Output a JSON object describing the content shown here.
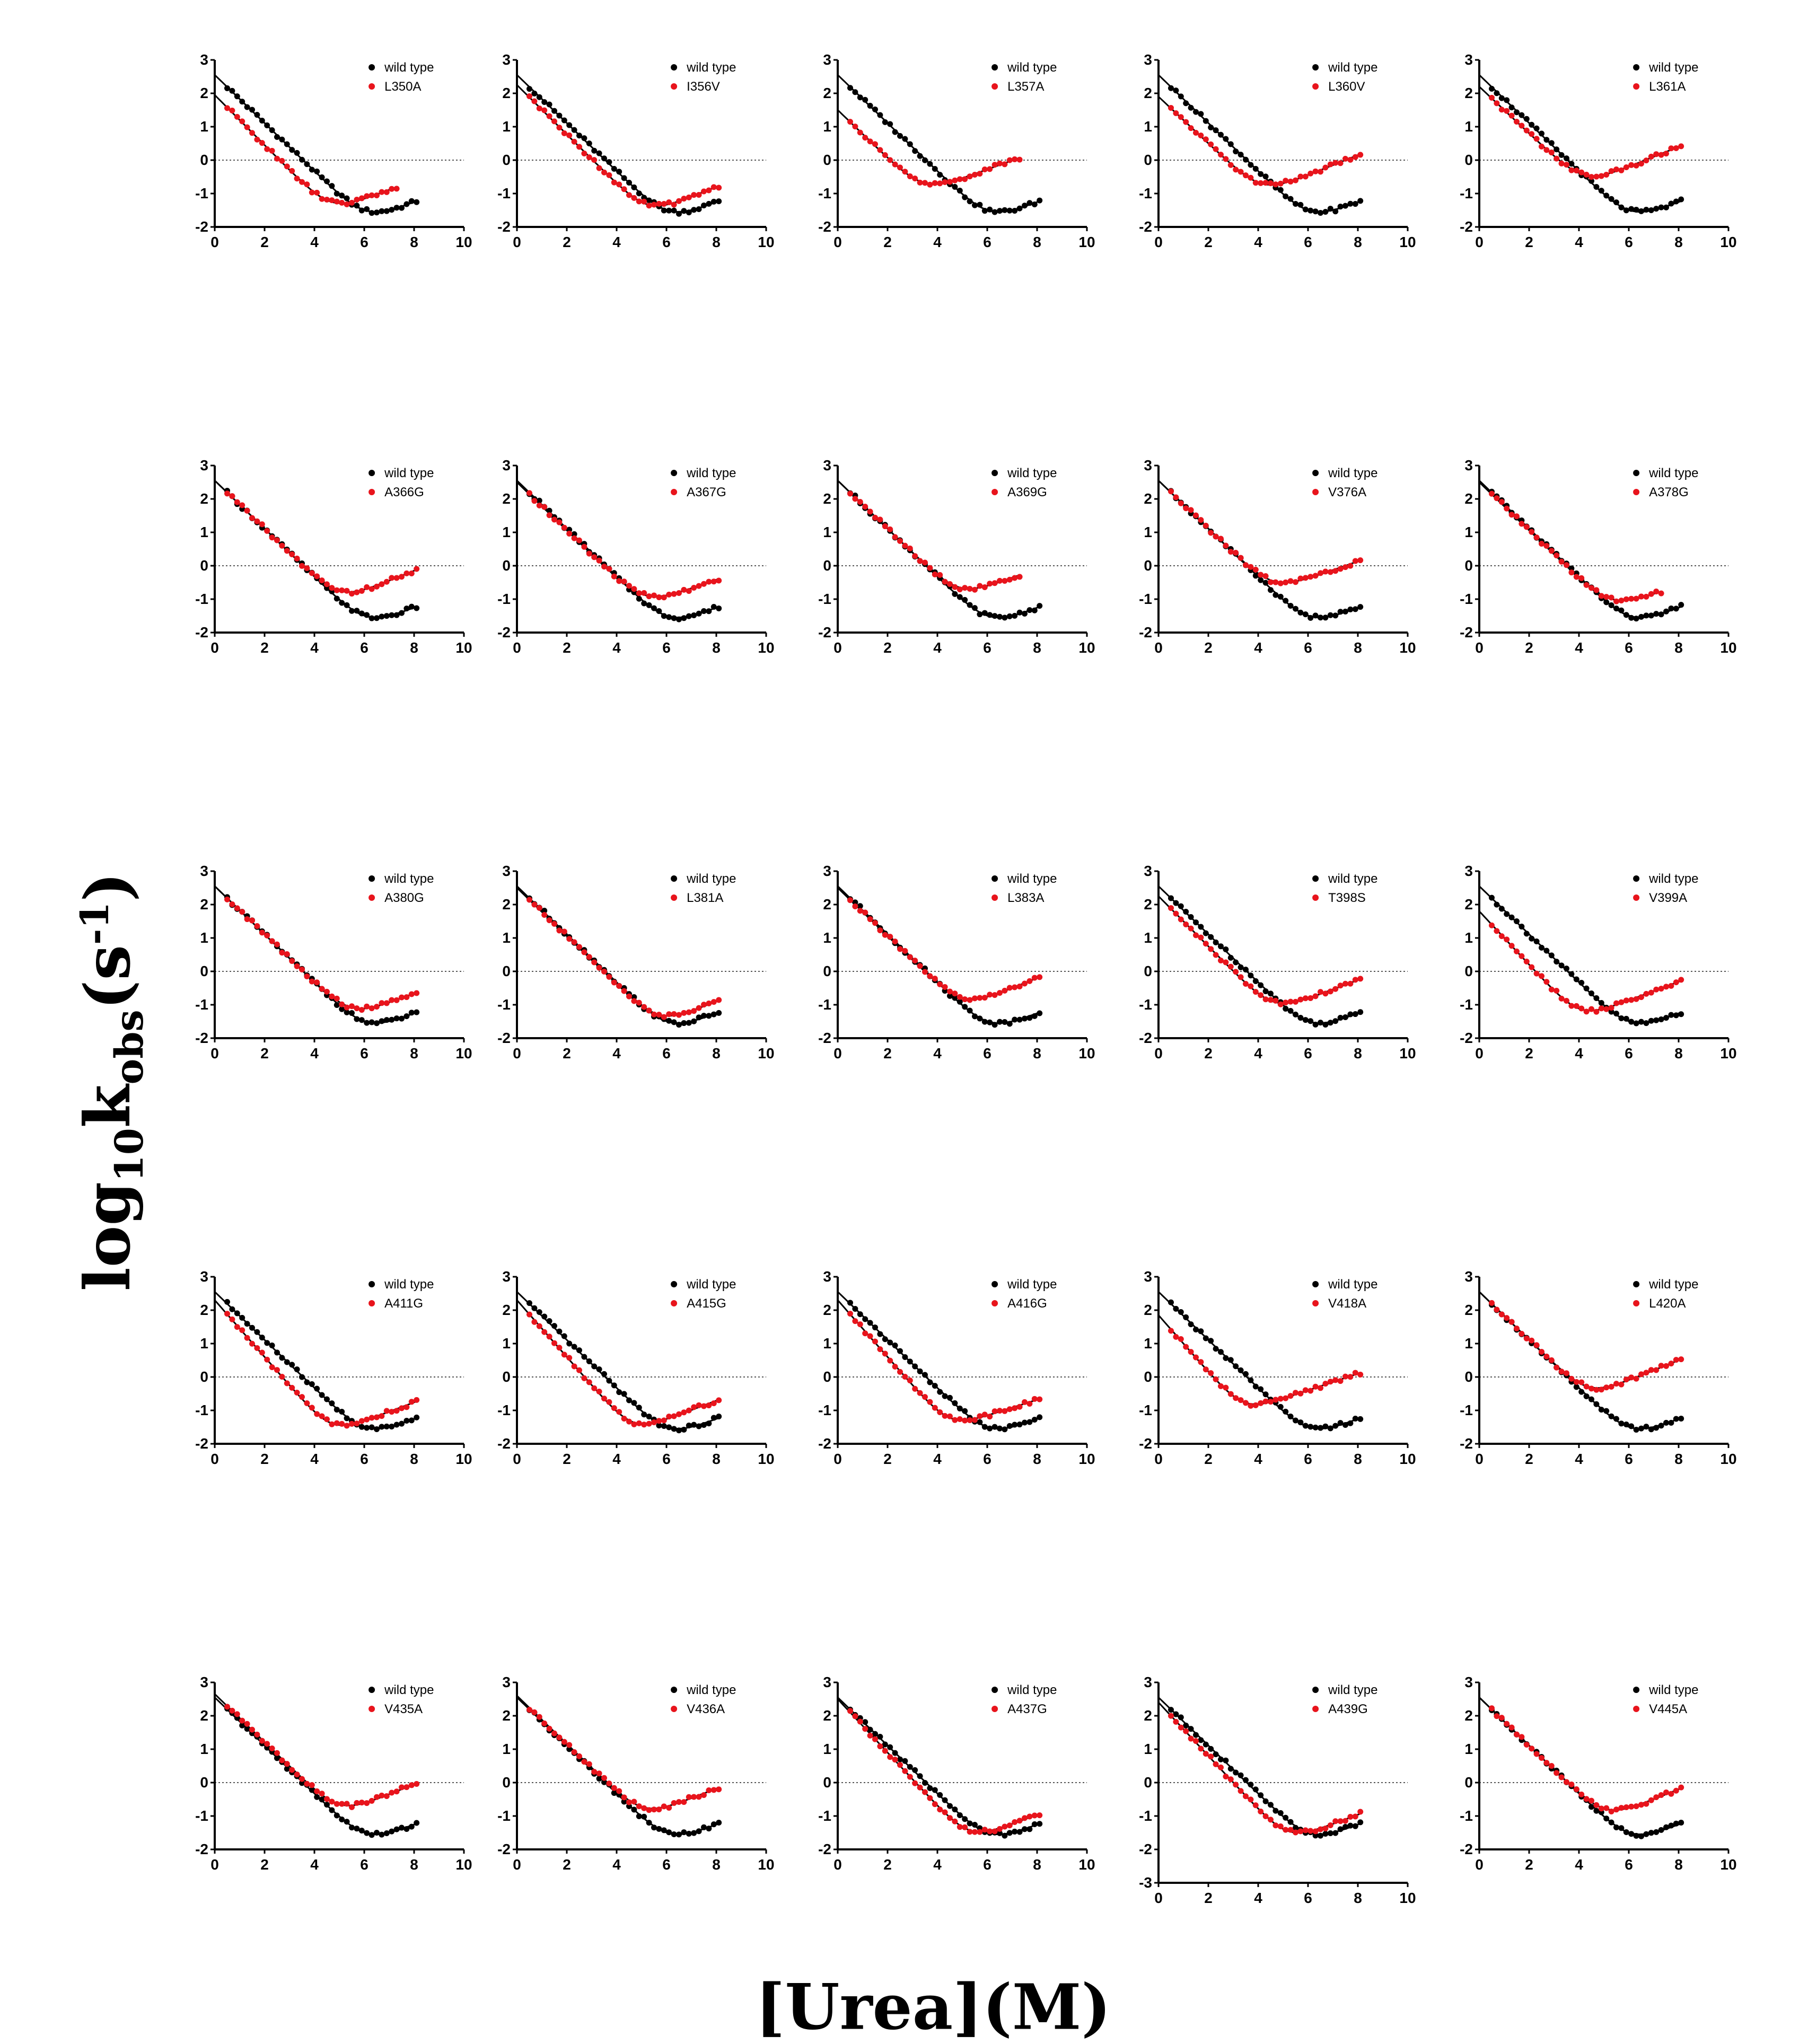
{
  "figure": {
    "ylabel": {
      "main": "log",
      "sub1": "10",
      "k": "k",
      "sub2": "obs",
      "unit_open": "(s",
      "sup": "-1",
      "unit_close": ")"
    },
    "xlabel": "[Urea](M)"
  },
  "colors": {
    "wild_type": "#000000",
    "mutant": "#e8141c",
    "zero_line": "#555555"
  },
  "chart_data": {
    "type": "scatter",
    "layout": "5x5 grid of small multiples",
    "xlabel": "[Urea](M)",
    "ylabel": "log10 kobs (s-1)",
    "xlim": [
      0,
      10
    ],
    "xticks": [
      0,
      2,
      4,
      6,
      8,
      10
    ],
    "ylim_default": [
      -2,
      3
    ],
    "wild_type": {
      "name": "wild type",
      "fold_params": {
        "a": 2.55,
        "s": 0.72,
        "b": -3.5,
        "m": 0.28
      },
      "x_range": [
        0.5,
        8.1
      ]
    },
    "panels": [
      {
        "mutant": "L350A",
        "a": 1.95,
        "s": 0.75,
        "b": -2.85,
        "m": 0.28,
        "xmax": 7.3
      },
      {
        "mutant": "I356V",
        "a": 2.25,
        "s": 0.74,
        "b": -3.2,
        "m": 0.3,
        "xmax": 8.1
      },
      {
        "mutant": "L357A",
        "a": 1.5,
        "s": 0.72,
        "b": -1.9,
        "m": 0.27,
        "xmax": 7.3
      },
      {
        "mutant": "L360V",
        "a": 1.9,
        "s": 0.7,
        "b": -2.25,
        "m": 0.3,
        "xmax": 8.1
      },
      {
        "mutant": "L361A",
        "a": 2.2,
        "s": 0.7,
        "b": -2.0,
        "m": 0.3,
        "xmax": 8.1
      },
      {
        "mutant": "A366G",
        "a": 2.55,
        "s": 0.72,
        "b": -2.55,
        "m": 0.3,
        "xmax": 8.1
      },
      {
        "mutant": "A367G",
        "a": 2.5,
        "s": 0.72,
        "b": -2.5,
        "m": 0.26,
        "xmax": 8.1
      },
      {
        "mutant": "A369G",
        "a": 2.55,
        "s": 0.72,
        "b": -2.25,
        "m": 0.27,
        "xmax": 7.3
      },
      {
        "mutant": "V376A",
        "a": 2.55,
        "s": 0.72,
        "b": -1.95,
        "m": 0.26,
        "xmax": 8.1
      },
      {
        "mutant": "A378G",
        "a": 2.5,
        "s": 0.72,
        "b": -2.6,
        "m": 0.25,
        "xmax": 7.3
      },
      {
        "mutant": "A380G",
        "a": 2.55,
        "s": 0.72,
        "b": -2.9,
        "m": 0.28,
        "xmax": 8.1
      },
      {
        "mutant": "L381A",
        "a": 2.5,
        "s": 0.72,
        "b": -3.3,
        "m": 0.3,
        "xmax": 8.1
      },
      {
        "mutant": "L383A",
        "a": 2.5,
        "s": 0.72,
        "b": -2.6,
        "m": 0.3,
        "xmax": 8.1
      },
      {
        "mutant": "T398S",
        "a": 2.25,
        "s": 0.75,
        "b": -2.5,
        "m": 0.28,
        "xmax": 8.1
      },
      {
        "mutant": "V399A",
        "a": 1.8,
        "s": 0.8,
        "b": -2.55,
        "m": 0.28,
        "xmax": 8.1
      },
      {
        "mutant": "A411G",
        "a": 2.3,
        "s": 0.85,
        "b": -3.0,
        "m": 0.28,
        "xmax": 8.1
      },
      {
        "mutant": "A415G",
        "a": 2.3,
        "s": 0.85,
        "b": -2.95,
        "m": 0.28,
        "xmax": 8.1
      },
      {
        "mutant": "A416G",
        "a": 2.3,
        "s": 0.85,
        "b": -2.6,
        "m": 0.24,
        "xmax": 8.1
      },
      {
        "mutant": "V418A",
        "a": 1.85,
        "s": 0.85,
        "b": -1.9,
        "m": 0.25,
        "xmax": 8.1
      },
      {
        "mutant": "L420A",
        "a": 2.55,
        "s": 0.72,
        "b": -1.9,
        "m": 0.3,
        "xmax": 8.1
      },
      {
        "mutant": "V435A",
        "a": 2.65,
        "s": 0.72,
        "b": -2.45,
        "m": 0.3,
        "xmax": 8.1
      },
      {
        "mutant": "V436A",
        "a": 2.6,
        "s": 0.72,
        "b": -2.5,
        "m": 0.29,
        "xmax": 8.1
      },
      {
        "mutant": "A437G",
        "a": 2.5,
        "s": 0.8,
        "b": -3.2,
        "m": 0.28,
        "xmax": 8.1
      },
      {
        "mutant": "A439G",
        "a": 2.4,
        "s": 0.8,
        "b": -3.2,
        "m": 0.28,
        "xmax": 8.1,
        "ylim": [
          -3,
          3
        ]
      },
      {
        "mutant": "V445A",
        "a": 2.55,
        "s": 0.72,
        "b": -2.6,
        "m": 0.3,
        "xmax": 8.1
      }
    ]
  }
}
